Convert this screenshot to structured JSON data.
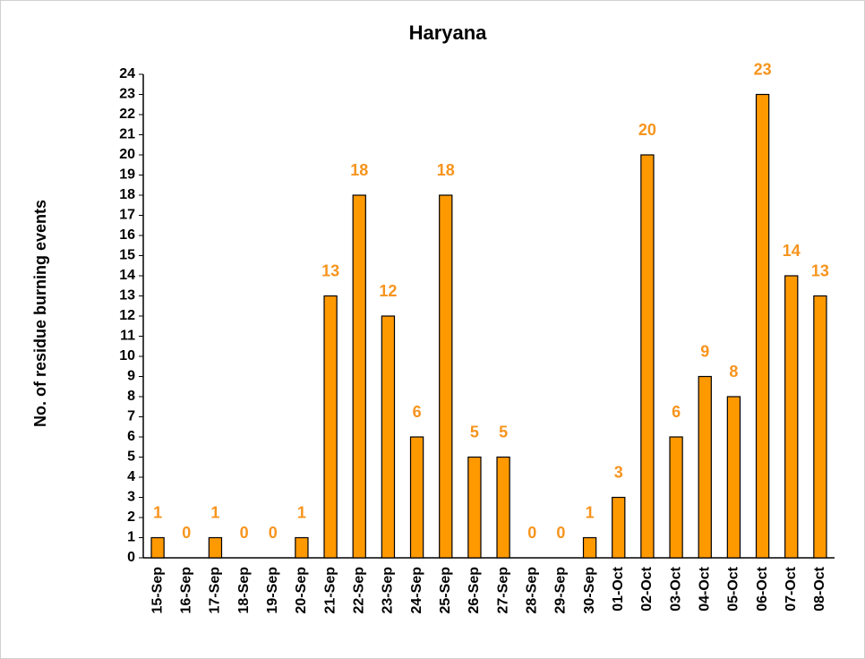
{
  "chart_data": {
    "type": "bar",
    "title": "Haryana",
    "ylabel": "No. of residue burning events",
    "categories": [
      "15-Sep",
      "16-Sep",
      "17-Sep",
      "18-Sep",
      "19-Sep",
      "20-Sep",
      "21-Sep",
      "22-Sep",
      "23-Sep",
      "24-Sep",
      "25-Sep",
      "26-Sep",
      "27-Sep",
      "28-Sep",
      "29-Sep",
      "30-Sep",
      "01-Oct",
      "02-Oct",
      "03-Oct",
      "04-Oct",
      "05-Oct",
      "06-Oct",
      "07-Oct",
      "08-Oct"
    ],
    "values": [
      1,
      0,
      1,
      0,
      0,
      1,
      13,
      18,
      12,
      6,
      18,
      5,
      5,
      0,
      0,
      1,
      3,
      20,
      6,
      9,
      8,
      23,
      14,
      13
    ],
    "color": "#ff9900",
    "ylim": [
      0,
      24
    ],
    "yticks": [
      0,
      1,
      2,
      3,
      4,
      5,
      6,
      7,
      8,
      9,
      10,
      11,
      12,
      13,
      14,
      15,
      16,
      17,
      18,
      19,
      20,
      21,
      22,
      23,
      24
    ],
    "grid": false
  }
}
